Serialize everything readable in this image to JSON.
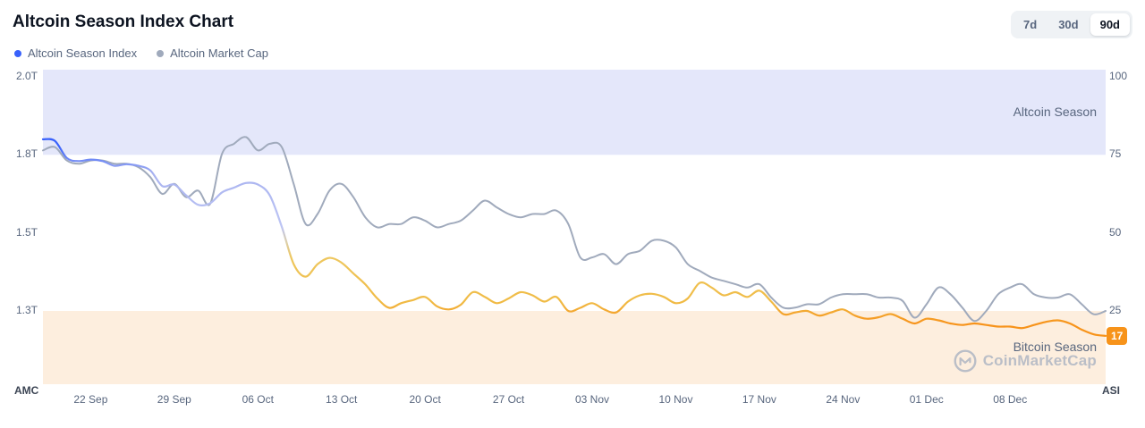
{
  "header": {
    "title": "Altcoin Season Index Chart",
    "range_buttons": [
      {
        "label": "7d",
        "active": false
      },
      {
        "label": "30d",
        "active": false
      },
      {
        "label": "90d",
        "active": true
      }
    ]
  },
  "legend": [
    {
      "label": "Altcoin Season Index",
      "color": "#3861fb"
    },
    {
      "label": "Altcoin Market Cap",
      "color": "#a0aabc"
    }
  ],
  "watermark": {
    "text": "CoinMarketCap"
  },
  "chart_data": {
    "type": "line",
    "x_tick_labels": [
      "22 Sep",
      "29 Sep",
      "06 Oct",
      "13 Oct",
      "20 Oct",
      "27 Oct",
      "03 Nov",
      "10 Nov",
      "17 Nov",
      "24 Nov",
      "01 Dec",
      "08 Dec"
    ],
    "x_tick_indices": [
      4,
      11,
      18,
      25,
      32,
      39,
      46,
      53,
      60,
      67,
      74,
      81
    ],
    "left_axis": {
      "title": "AMC",
      "tick_labels": [
        "2.0T",
        "1.8T",
        "1.5T",
        "1.3T"
      ],
      "min": 1.3,
      "max": 2.0
    },
    "right_axis": {
      "title": "ASI",
      "tick_labels": [
        "100",
        "75",
        "50",
        "25"
      ],
      "min": 0,
      "max": 100
    },
    "zones": [
      {
        "label": "Altcoin Season",
        "from": 75,
        "to": 100,
        "color": "#e4e7fa"
      },
      {
        "label": "Bitcoin Season",
        "from": 0,
        "to": 25,
        "color": "#fdeede"
      }
    ],
    "series": [
      {
        "name": "Altcoin Season Index",
        "axis": "right",
        "color_stops": [
          {
            "value": 100,
            "color": "#3861fb"
          },
          {
            "value": 78,
            "color": "#3861fb"
          },
          {
            "value": 69,
            "color": "#a9b3f0"
          },
          {
            "value": 52,
            "color": "#bdc5f4"
          },
          {
            "value": 47,
            "color": "#dccfa9"
          },
          {
            "value": 42,
            "color": "#eec75e"
          },
          {
            "value": 28,
            "color": "#f0bb45"
          },
          {
            "value": 21,
            "color": "#f7931a"
          },
          {
            "value": 0,
            "color": "#f7931a"
          }
        ],
        "values": [
          80,
          79.5,
          74,
          73,
          73.5,
          73,
          71.5,
          72,
          71.5,
          70,
          65,
          65.5,
          62,
          59,
          59.5,
          63,
          64.5,
          66,
          65.5,
          62,
          52,
          40,
          36,
          40,
          42,
          40.5,
          37,
          33.5,
          29,
          26,
          27.5,
          28.5,
          29.5,
          26.5,
          25.5,
          27,
          31,
          29.5,
          27.5,
          29,
          31,
          30,
          28,
          29.5,
          25,
          26,
          27.5,
          25.5,
          24.5,
          28,
          30,
          30.5,
          29.5,
          27.5,
          29,
          34,
          32.5,
          30,
          31,
          29.5,
          31.5,
          28,
          24,
          24.5,
          25,
          23.5,
          24.5,
          25.5,
          23.5,
          22.5,
          23,
          24,
          22.5,
          21,
          22.5,
          22,
          21,
          20.5,
          21,
          20.5,
          20,
          20,
          19.5,
          20.5,
          21.5,
          22,
          21,
          19,
          17.5,
          17
        ]
      },
      {
        "name": "Altcoin Market Cap",
        "axis": "left",
        "color": "#a0aabc",
        "values": [
          1.78,
          1.79,
          1.75,
          1.74,
          1.75,
          1.75,
          1.74,
          1.74,
          1.73,
          1.7,
          1.65,
          1.68,
          1.64,
          1.66,
          1.62,
          1.77,
          1.8,
          1.82,
          1.78,
          1.8,
          1.79,
          1.68,
          1.56,
          1.59,
          1.66,
          1.68,
          1.64,
          1.58,
          1.55,
          1.56,
          1.56,
          1.58,
          1.57,
          1.55,
          1.56,
          1.57,
          1.6,
          1.63,
          1.61,
          1.59,
          1.58,
          1.59,
          1.59,
          1.6,
          1.56,
          1.46,
          1.46,
          1.47,
          1.44,
          1.47,
          1.48,
          1.51,
          1.51,
          1.49,
          1.44,
          1.42,
          1.4,
          1.39,
          1.38,
          1.37,
          1.38,
          1.34,
          1.31,
          1.31,
          1.32,
          1.32,
          1.34,
          1.35,
          1.35,
          1.35,
          1.34,
          1.34,
          1.33,
          1.28,
          1.32,
          1.37,
          1.35,
          1.31,
          1.27,
          1.3,
          1.35,
          1.37,
          1.38,
          1.35,
          1.34,
          1.34,
          1.35,
          1.32,
          1.29,
          1.3
        ]
      }
    ],
    "last_value_badge": {
      "label": "17",
      "color": "#f7931a"
    }
  }
}
